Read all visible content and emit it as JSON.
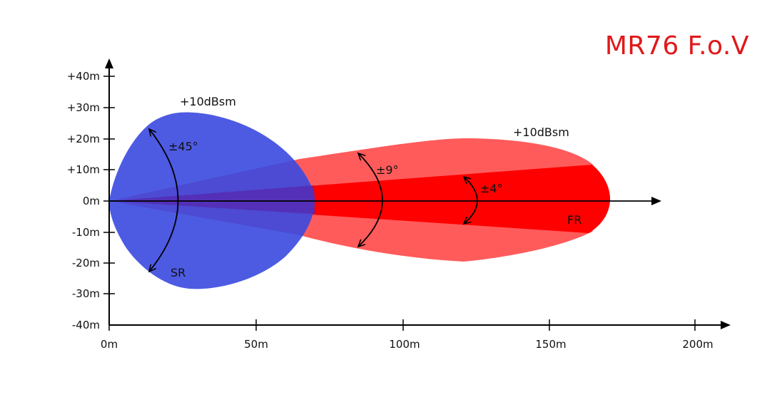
{
  "title": "MR76 F.o.V",
  "y_axis": {
    "ticks": [
      "+40m",
      "+30m",
      "+20m",
      "+10m",
      "0m",
      "-10m",
      "-20m",
      "-30m",
      "-40m"
    ],
    "values": [
      40,
      30,
      20,
      10,
      0,
      -10,
      -20,
      -30,
      -40
    ]
  },
  "x_axis": {
    "ticks": [
      "0m",
      "50m",
      "100m",
      "150m",
      "200m"
    ],
    "values": [
      0,
      50,
      100,
      150,
      200
    ]
  },
  "short_range": {
    "label": "SR",
    "sensitivity": "+10dBsm",
    "angle": "±45°",
    "color": "#3f4de6",
    "max_range_m": 70,
    "max_width_m": 29
  },
  "long_range": {
    "label": "FR",
    "sensitivity": "+10dBsm",
    "angle_wide": "±9°",
    "angle_narrow": "±4°",
    "color_wide": "#ff4d4d",
    "color_narrow": "#ff0000",
    "max_range_m": 170,
    "max_width_m": 20
  }
}
